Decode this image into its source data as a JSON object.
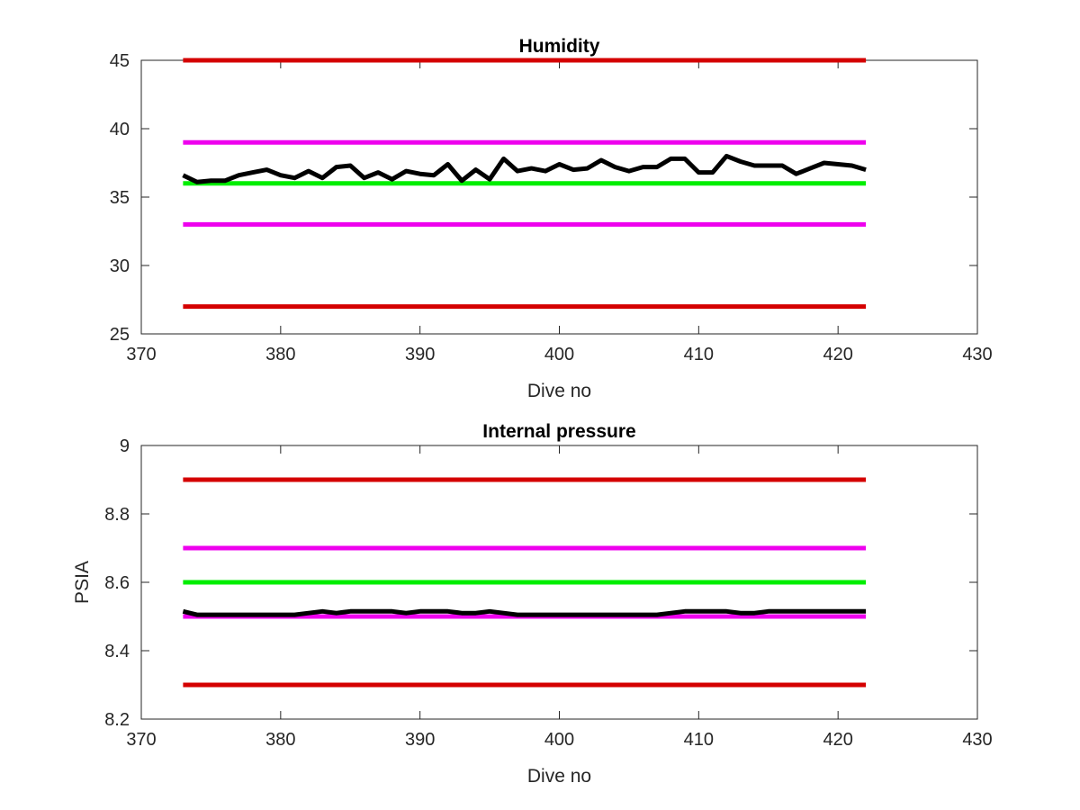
{
  "chart_data": [
    {
      "type": "line",
      "title": "Humidity",
      "xlabel": "Dive no",
      "ylabel": "",
      "xlim": [
        370,
        430
      ],
      "ylim": [
        25,
        45
      ],
      "xticks": [
        370,
        380,
        390,
        400,
        410,
        420,
        430
      ],
      "yticks": [
        25,
        30,
        35,
        40,
        45
      ],
      "xtick_labels": [
        "370",
        "380",
        "390",
        "400",
        "410",
        "420",
        "430"
      ],
      "ytick_labels": [
        "25",
        "30",
        "35",
        "40",
        "45"
      ],
      "grid": false,
      "legend": "none",
      "series": [
        {
          "x": [
            373,
            422
          ],
          "y": [
            45,
            45
          ],
          "color": "#d40000",
          "width": 5
        },
        {
          "x": [
            373,
            422
          ],
          "y": [
            39,
            39
          ],
          "color": "#ee00ee",
          "width": 5
        },
        {
          "x": [
            373,
            422
          ],
          "y": [
            36,
            36
          ],
          "color": "#00ee00",
          "width": 5
        },
        {
          "x": [
            373,
            422
          ],
          "y": [
            33,
            33
          ],
          "color": "#ee00ee",
          "width": 5
        },
        {
          "x": [
            373,
            422
          ],
          "y": [
            27,
            27
          ],
          "color": "#d40000",
          "width": 5
        },
        {
          "color": "#000000",
          "width": 5,
          "x": [
            373,
            374,
            375,
            376,
            377,
            378,
            379,
            380,
            381,
            382,
            383,
            384,
            385,
            386,
            387,
            388,
            389,
            390,
            391,
            392,
            393,
            394,
            395,
            396,
            397,
            398,
            399,
            400,
            401,
            402,
            403,
            404,
            405,
            406,
            407,
            408,
            409,
            410,
            411,
            412,
            413,
            414,
            415,
            416,
            417,
            418,
            419,
            420,
            421,
            422
          ],
          "y": [
            36.6,
            36.1,
            36.2,
            36.2,
            36.6,
            36.8,
            37.0,
            36.6,
            36.4,
            36.9,
            36.4,
            37.2,
            37.3,
            36.4,
            36.8,
            36.3,
            36.9,
            36.7,
            36.6,
            37.4,
            36.2,
            37.0,
            36.3,
            37.8,
            36.9,
            37.1,
            36.9,
            37.4,
            37.0,
            37.1,
            37.7,
            37.2,
            36.9,
            37.2,
            37.2,
            37.8,
            37.8,
            36.8,
            36.8,
            38.0,
            37.6,
            37.3,
            37.3,
            37.3,
            36.7,
            37.1,
            37.5,
            37.4,
            37.3,
            37.0
          ]
        }
      ]
    },
    {
      "type": "line",
      "title": "Internal pressure",
      "xlabel": "Dive no",
      "ylabel": "PSIA",
      "xlim": [
        370,
        430
      ],
      "ylim": [
        8.2,
        9
      ],
      "xticks": [
        370,
        380,
        390,
        400,
        410,
        420,
        430
      ],
      "yticks": [
        8.2,
        8.4,
        8.6,
        8.8,
        9
      ],
      "xtick_labels": [
        "370",
        "380",
        "390",
        "400",
        "410",
        "420",
        "430"
      ],
      "ytick_labels": [
        "8.2",
        "8.4",
        "8.6",
        "8.8",
        "9"
      ],
      "grid": false,
      "legend": "none",
      "series": [
        {
          "x": [
            373,
            422
          ],
          "y": [
            8.9,
            8.9
          ],
          "color": "#d40000",
          "width": 5
        },
        {
          "x": [
            373,
            422
          ],
          "y": [
            8.7,
            8.7
          ],
          "color": "#ee00ee",
          "width": 5
        },
        {
          "x": [
            373,
            422
          ],
          "y": [
            8.6,
            8.6
          ],
          "color": "#00ee00",
          "width": 5
        },
        {
          "x": [
            373,
            422
          ],
          "y": [
            8.5,
            8.5
          ],
          "color": "#ee00ee",
          "width": 5
        },
        {
          "x": [
            373,
            422
          ],
          "y": [
            8.3,
            8.3
          ],
          "color": "#d40000",
          "width": 5
        },
        {
          "color": "#000000",
          "width": 5,
          "x": [
            373,
            374,
            375,
            376,
            377,
            378,
            379,
            380,
            381,
            382,
            383,
            384,
            385,
            386,
            387,
            388,
            389,
            390,
            391,
            392,
            393,
            394,
            395,
            396,
            397,
            398,
            399,
            400,
            401,
            402,
            403,
            404,
            405,
            406,
            407,
            408,
            409,
            410,
            411,
            412,
            413,
            414,
            415,
            416,
            417,
            418,
            419,
            420,
            421,
            422
          ],
          "y": [
            8.515,
            8.505,
            8.505,
            8.505,
            8.505,
            8.505,
            8.505,
            8.505,
            8.505,
            8.51,
            8.515,
            8.51,
            8.515,
            8.515,
            8.515,
            8.515,
            8.51,
            8.515,
            8.515,
            8.515,
            8.51,
            8.51,
            8.515,
            8.51,
            8.505,
            8.505,
            8.505,
            8.505,
            8.505,
            8.505,
            8.505,
            8.505,
            8.505,
            8.505,
            8.505,
            8.51,
            8.515,
            8.515,
            8.515,
            8.515,
            8.51,
            8.51,
            8.515,
            8.515,
            8.515,
            8.515,
            8.515,
            8.515,
            8.515,
            8.515
          ]
        }
      ]
    }
  ]
}
